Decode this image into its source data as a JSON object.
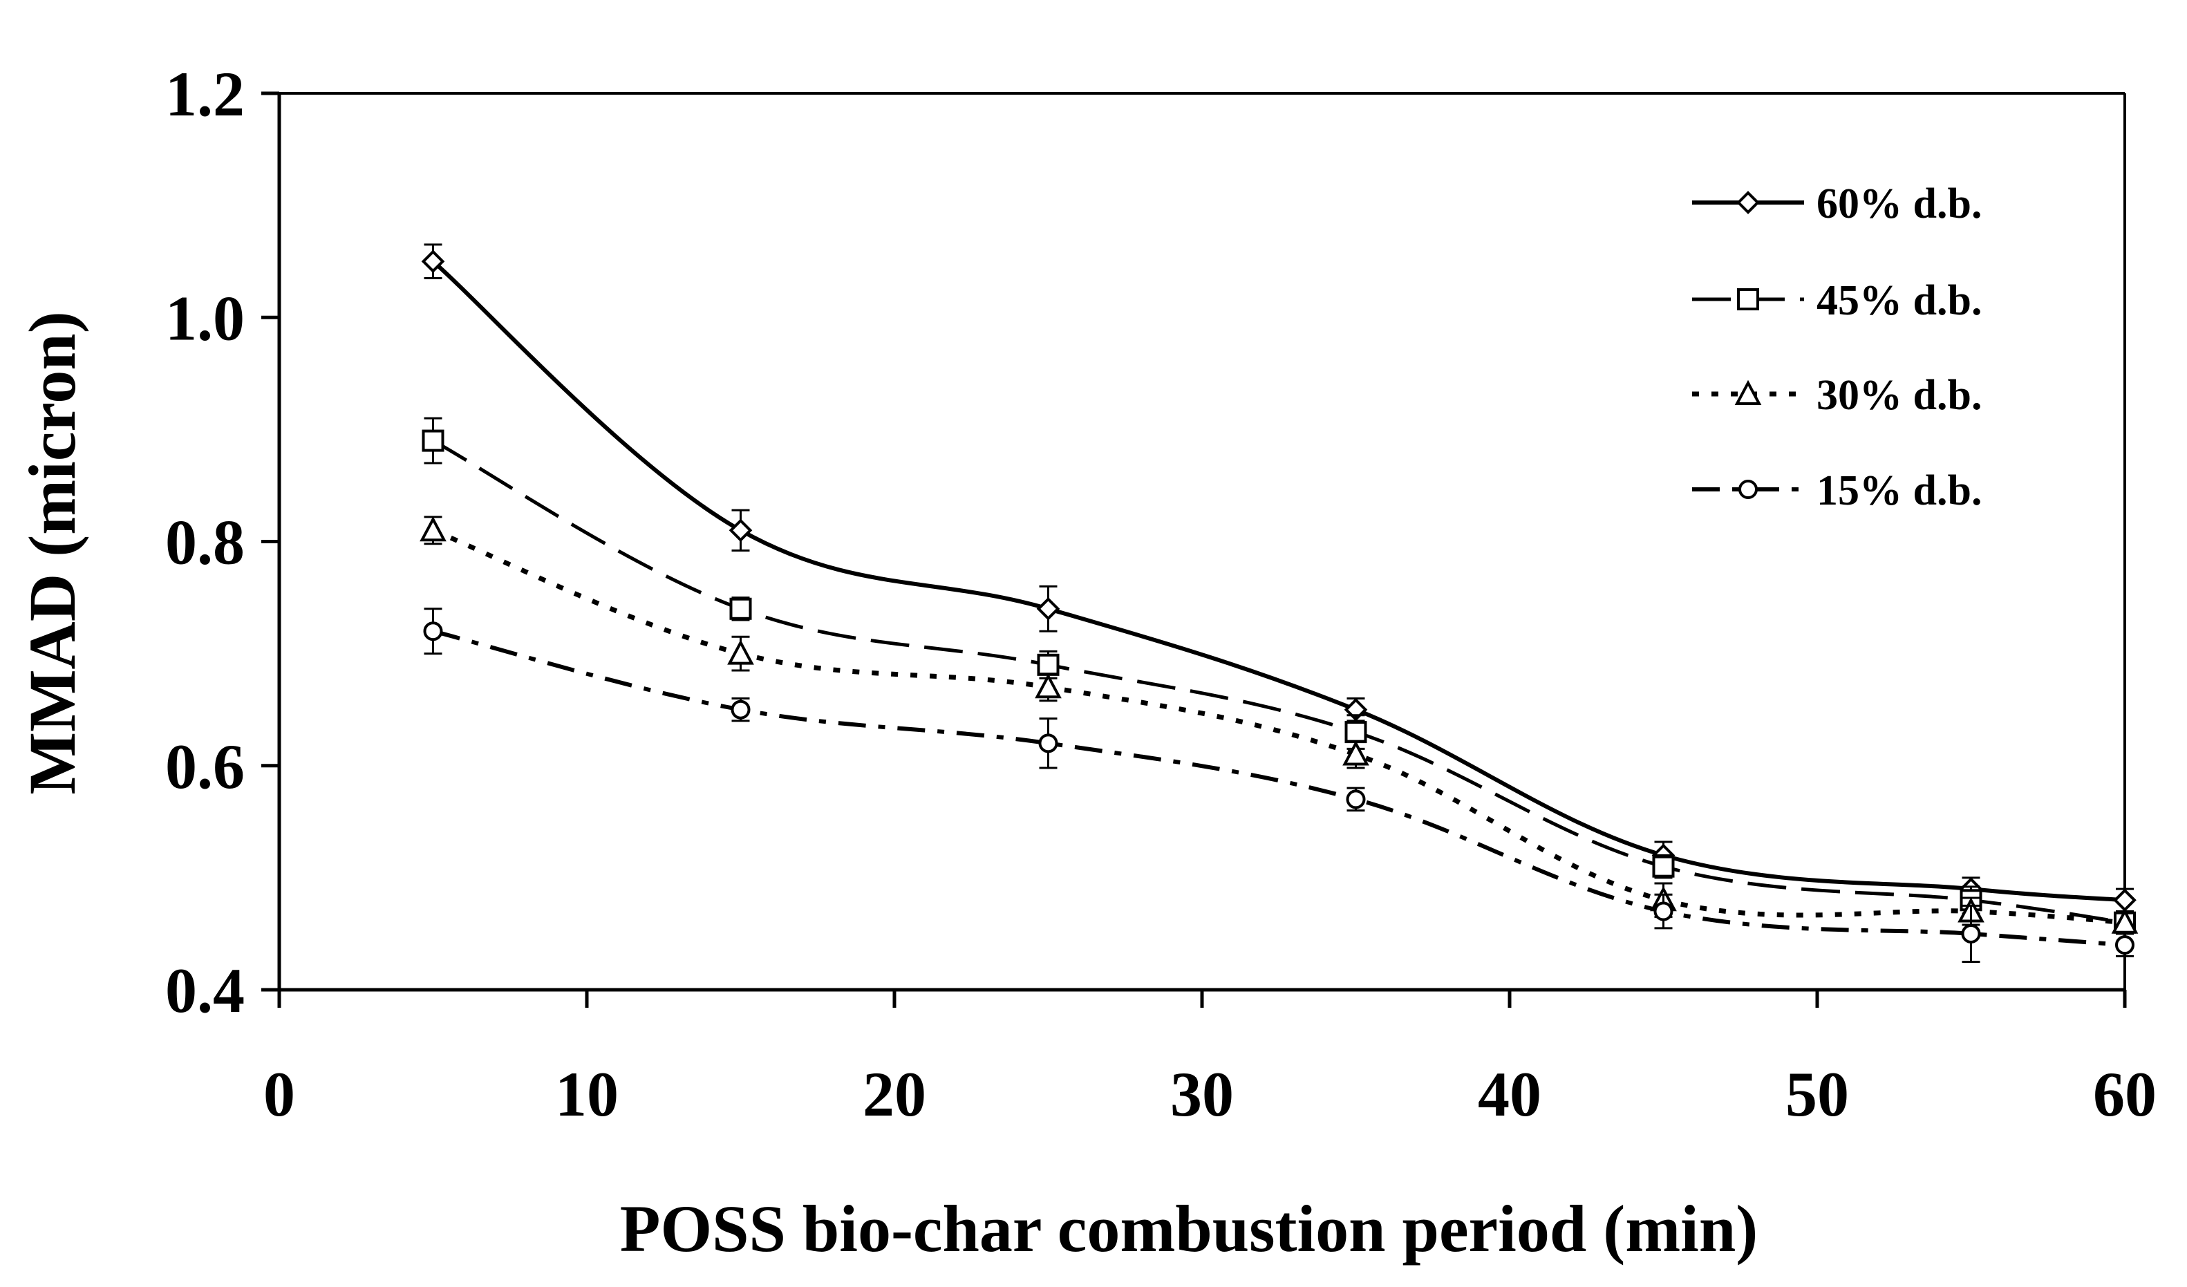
{
  "chart_data": {
    "type": "line",
    "title": "",
    "xlabel": "POSS bio-char combustion period (min)",
    "ylabel": "MMAD (micron)",
    "xlim": [
      0,
      60
    ],
    "ylim": [
      0.4,
      1.2
    ],
    "xticks": [
      0,
      10,
      20,
      30,
      40,
      50,
      60
    ],
    "xtick_labels": [
      "0",
      "10",
      "20",
      "30",
      "40",
      "50",
      "60"
    ],
    "yticks": [
      0.4,
      0.6,
      0.8,
      1.0,
      1.2
    ],
    "ytick_labels": [
      "0.4",
      "0.6",
      "0.8",
      "1.0",
      "1.2"
    ],
    "x": [
      5,
      15,
      25,
      35,
      45,
      55,
      60
    ],
    "series": [
      {
        "name": "60% d.b.",
        "marker": "diamond",
        "dash": "solid",
        "values": [
          1.05,
          0.81,
          0.74,
          0.65,
          0.52,
          0.49,
          0.48
        ],
        "errors": [
          0.015,
          0.018,
          0.02,
          0.01,
          0.012,
          0.01,
          0.01
        ]
      },
      {
        "name": "45% d.b.",
        "marker": "square",
        "dash": "longdash",
        "values": [
          0.89,
          0.74,
          0.69,
          0.63,
          0.51,
          0.48,
          0.46
        ],
        "errors": [
          0.02,
          0.01,
          0.012,
          0.015,
          0.01,
          0.012,
          0.01
        ]
      },
      {
        "name": "30% d.b.",
        "marker": "triangle",
        "dash": "dotted",
        "values": [
          0.81,
          0.7,
          0.67,
          0.61,
          0.48,
          0.47,
          0.46
        ],
        "errors": [
          0.012,
          0.015,
          0.012,
          0.012,
          0.015,
          0.012,
          0.01
        ]
      },
      {
        "name": "15% d.b.",
        "marker": "circle",
        "dash": "dashdot",
        "values": [
          0.72,
          0.65,
          0.62,
          0.57,
          0.47,
          0.45,
          0.44
        ],
        "errors": [
          0.02,
          0.01,
          0.022,
          0.01,
          0.015,
          0.025,
          0.01
        ]
      }
    ],
    "legend_position": "top-right",
    "grid": false
  }
}
